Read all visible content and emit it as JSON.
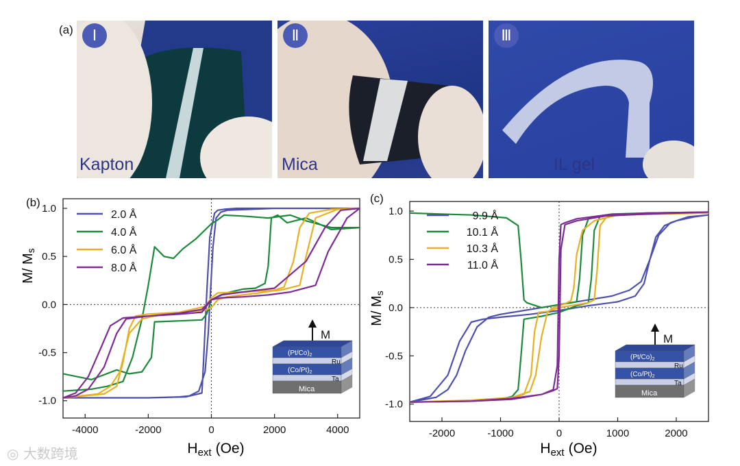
{
  "panel_a": {
    "letter": "(a)",
    "photos": [
      {
        "numeral": "Ⅰ",
        "label": "Kapton"
      },
      {
        "numeral": "Ⅱ",
        "label": "Mica"
      },
      {
        "numeral": "Ⅲ",
        "label": "IL gel"
      }
    ]
  },
  "inset": {
    "arrow_label": "M",
    "layers": [
      "(Pt/Co)",
      "Ru",
      "(Co/Pt)",
      "Ta",
      "Mica"
    ],
    "subscript": "2"
  },
  "watermark": "大数跨境",
  "colors": {
    "blue": "#4c4fae",
    "green": "#1a8a3a",
    "yellow": "#e6b020",
    "purple": "#7d2a95"
  },
  "chart_data": [
    {
      "panel": "(b)",
      "type": "line",
      "xlabel_main": "H",
      "xlabel_sub": "ext",
      "xlabel_unit": "(Oe)",
      "ylabel_main": "M/ M",
      "ylabel_sub": "s",
      "xlim": [
        -4700,
        4700
      ],
      "ylim": [
        -1.18,
        1.1
      ],
      "xticks": [
        -4000,
        -2000,
        0,
        2000,
        4000
      ],
      "yticks": [
        1.0,
        0.5,
        0.0,
        -0.5,
        -1.0
      ],
      "xtick_labels": [
        "-4000",
        "-2000",
        "0",
        "2000",
        "4000"
      ],
      "ytick_labels": [
        "1.0",
        "0.5",
        "0.0",
        "-0.5",
        "-1.0"
      ],
      "legend": [
        "2.0 Å",
        "4.0 Å",
        "6.0 Å",
        "8.0 Å"
      ],
      "series": [
        {
          "name": "2.0 Å",
          "color": "blue",
          "x": [
            -4700,
            -2000,
            -800,
            -300,
            -250,
            -150,
            -50,
            100,
            200,
            400,
            800,
            2000,
            4700,
            2000,
            500,
            300,
            150,
            50,
            -50,
            -100,
            -200,
            -400,
            -700,
            -1000,
            -2000,
            -4700
          ],
          "y": [
            -0.97,
            -0.97,
            -0.96,
            -0.92,
            -0.6,
            0.1,
            0.7,
            0.95,
            0.98,
            0.99,
            1.0,
            1.0,
            1.0,
            1.0,
            0.98,
            0.96,
            0.9,
            0.6,
            0.0,
            -0.3,
            -0.7,
            -0.9,
            -0.95,
            -0.96,
            -0.97,
            -0.97
          ]
        },
        {
          "name": "4.0 Å",
          "color": "green",
          "x": [
            -4700,
            -3800,
            -3000,
            -2600,
            -2200,
            -1900,
            -1800,
            -1000,
            -300,
            -150,
            0,
            200,
            400,
            600,
            1000,
            1400,
            1700,
            1800,
            1900,
            2100,
            2400,
            3000,
            3800,
            4700,
            3800,
            3000,
            2500,
            1800,
            1000,
            400,
            200,
            0,
            -500,
            -900,
            -1200,
            -1500,
            -1800,
            -2000,
            -2200,
            -2500,
            -2800,
            -3300,
            -3800,
            -4700
          ],
          "y": [
            -0.72,
            -0.78,
            -0.68,
            -0.72,
            -0.7,
            -0.55,
            -0.18,
            -0.17,
            -0.16,
            -0.1,
            0.05,
            0.08,
            0.11,
            0.13,
            0.16,
            0.17,
            0.22,
            0.4,
            0.9,
            0.93,
            0.85,
            0.9,
            0.78,
            0.8,
            0.8,
            0.87,
            0.93,
            0.9,
            0.92,
            0.93,
            0.88,
            0.84,
            0.68,
            0.58,
            0.48,
            0.5,
            0.6,
            0.2,
            -0.15,
            -0.55,
            -0.8,
            -0.85,
            -0.88,
            -0.9
          ]
        },
        {
          "name": "6.0 Å",
          "color": "yellow",
          "x": [
            -4700,
            -3400,
            -3000,
            -2800,
            -2600,
            -2400,
            -2000,
            -1000,
            -200,
            0,
            200,
            500,
            1000,
            1500,
            1900,
            2200,
            2800,
            3000,
            3300,
            4000,
            4700,
            3800,
            3100,
            2800,
            2600,
            2300,
            2000,
            1000,
            200,
            0,
            -200,
            -1000,
            -1800,
            -2200,
            -2600,
            -2900,
            -3200,
            -3600,
            -4700
          ],
          "y": [
            -0.97,
            -0.93,
            -0.85,
            -0.6,
            -0.25,
            -0.12,
            -0.1,
            -0.08,
            -0.06,
            -0.03,
            0.05,
            0.08,
            0.1,
            0.12,
            0.14,
            0.15,
            0.2,
            0.5,
            0.9,
            0.99,
            1.0,
            0.99,
            0.95,
            0.8,
            0.45,
            0.18,
            0.15,
            0.13,
            0.12,
            0.07,
            -0.02,
            -0.08,
            -0.12,
            -0.15,
            -0.3,
            -0.7,
            -0.85,
            -0.93,
            -0.97
          ]
        },
        {
          "name": "8.0 Å",
          "color": "purple",
          "x": [
            -4700,
            -4300,
            -3900,
            -3500,
            -3200,
            -2800,
            -2000,
            -1000,
            -300,
            0,
            300,
            1000,
            1800,
            2500,
            3300,
            3700,
            4300,
            4700,
            4100,
            3600,
            3000,
            2000,
            1000,
            300,
            0,
            -300,
            -1000,
            -2000,
            -2700,
            -3000,
            -3400,
            -3900,
            -4300,
            -4700
          ],
          "y": [
            -0.97,
            -0.92,
            -0.75,
            -0.45,
            -0.22,
            -0.14,
            -0.12,
            -0.1,
            -0.08,
            0.05,
            0.07,
            0.08,
            0.1,
            0.13,
            0.2,
            0.55,
            0.9,
            1.0,
            0.98,
            0.8,
            0.45,
            0.17,
            0.13,
            0.1,
            0.05,
            -0.05,
            -0.09,
            -0.12,
            -0.15,
            -0.3,
            -0.65,
            -0.88,
            -0.95,
            -0.97
          ]
        }
      ]
    },
    {
      "panel": "(c)",
      "type": "line",
      "xlabel_main": "H",
      "xlabel_sub": "ext",
      "xlabel_unit": "(Oe)",
      "ylabel_main": "M/ M",
      "ylabel_sub": "s",
      "xlim": [
        -2550,
        2550
      ],
      "ylim": [
        -1.18,
        1.1
      ],
      "xticks": [
        -2000,
        -1000,
        0,
        1000,
        2000
      ],
      "yticks": [
        1.0,
        0.5,
        0.0,
        -0.5,
        -1.0
      ],
      "xtick_labels": [
        "-2000",
        "-1000",
        "0",
        "1000",
        "2000"
      ],
      "ytick_labels": [
        "1.0",
        "0.5",
        "0.0",
        "-0.5",
        "-1.0"
      ],
      "legend": [
        "9.9 Å",
        "10.1 Å",
        "10.3 Å",
        "11.0 Å"
      ],
      "series": [
        {
          "name": "9.9 Å",
          "color": "blue",
          "x": [
            -2550,
            -2200,
            -1900,
            -1700,
            -1500,
            -1300,
            -1000,
            -500,
            0,
            500,
            1000,
            1300,
            1450,
            1550,
            1650,
            1800,
            2000,
            2300,
            2550,
            2200,
            1900,
            1700,
            1550,
            1400,
            1200,
            900,
            500,
            0,
            -500,
            -1000,
            -1200,
            -1400,
            -1600,
            -1750,
            -1900,
            -2100,
            -2550
          ],
          "y": [
            -0.98,
            -0.92,
            -0.7,
            -0.35,
            -0.15,
            -0.12,
            -0.1,
            -0.07,
            -0.03,
            0.02,
            0.06,
            0.12,
            0.25,
            0.5,
            0.73,
            0.85,
            0.9,
            0.94,
            0.96,
            0.94,
            0.88,
            0.75,
            0.5,
            0.27,
            0.18,
            0.12,
            0.08,
            0.03,
            -0.02,
            -0.07,
            -0.1,
            -0.2,
            -0.45,
            -0.7,
            -0.85,
            -0.93,
            -0.98
          ]
        },
        {
          "name": "10.1 Å",
          "color": "green",
          "x": [
            -2550,
            -1500,
            -1000,
            -800,
            -700,
            -650,
            -600,
            -300,
            0,
            300,
            500,
            550,
            600,
            700,
            900,
            1500,
            2550,
            1500,
            800,
            500,
            400,
            350,
            300,
            0,
            -300,
            -550,
            -600,
            -650,
            -700,
            -900,
            -1500,
            -2550
          ],
          "y": [
            -0.98,
            -0.97,
            -0.95,
            -0.92,
            -0.85,
            -0.5,
            -0.12,
            -0.09,
            -0.05,
            0.02,
            0.05,
            0.3,
            0.8,
            0.95,
            0.97,
            0.98,
            0.99,
            0.98,
            0.96,
            0.92,
            0.75,
            0.3,
            0.06,
            0.03,
            0.0,
            0.05,
            0.08,
            0.5,
            0.85,
            0.93,
            0.96,
            0.98
          ]
        },
        {
          "name": "10.3 Å",
          "color": "yellow",
          "x": [
            -2550,
            -1500,
            -900,
            -600,
            -480,
            -420,
            -350,
            -200,
            -100,
            0,
            200,
            500,
            600,
            650,
            700,
            800,
            1000,
            2550,
            1000,
            600,
            400,
            300,
            250,
            200,
            100,
            0,
            -100,
            -200,
            -300,
            -400,
            -500,
            -800,
            -1500,
            -2550
          ],
          "y": [
            -0.98,
            -0.97,
            -0.95,
            -0.9,
            -0.7,
            -0.25,
            -0.05,
            -0.04,
            -0.02,
            0.0,
            0.02,
            0.05,
            0.08,
            0.4,
            0.85,
            0.93,
            0.96,
            0.98,
            0.96,
            0.9,
            0.8,
            0.55,
            0.2,
            0.07,
            0.04,
            0.02,
            0.0,
            -0.05,
            -0.3,
            -0.7,
            -0.87,
            -0.93,
            -0.96,
            -0.98
          ]
        },
        {
          "name": "11.0 Å",
          "color": "purple",
          "x": [
            -2550,
            -1500,
            -800,
            -300,
            -100,
            -30,
            0,
            30,
            100,
            300,
            800,
            1500,
            2550,
            1500,
            800,
            300,
            100,
            30,
            0,
            -30,
            -100,
            -300,
            -800,
            -1500,
            -2550
          ],
          "y": [
            -0.98,
            -0.97,
            -0.95,
            -0.9,
            -0.86,
            -0.84,
            -0.5,
            0.6,
            0.86,
            0.9,
            0.95,
            0.97,
            0.99,
            0.98,
            0.96,
            0.92,
            0.88,
            0.86,
            0.5,
            -0.6,
            -0.85,
            -0.9,
            -0.94,
            -0.97,
            -0.98
          ]
        }
      ]
    }
  ]
}
